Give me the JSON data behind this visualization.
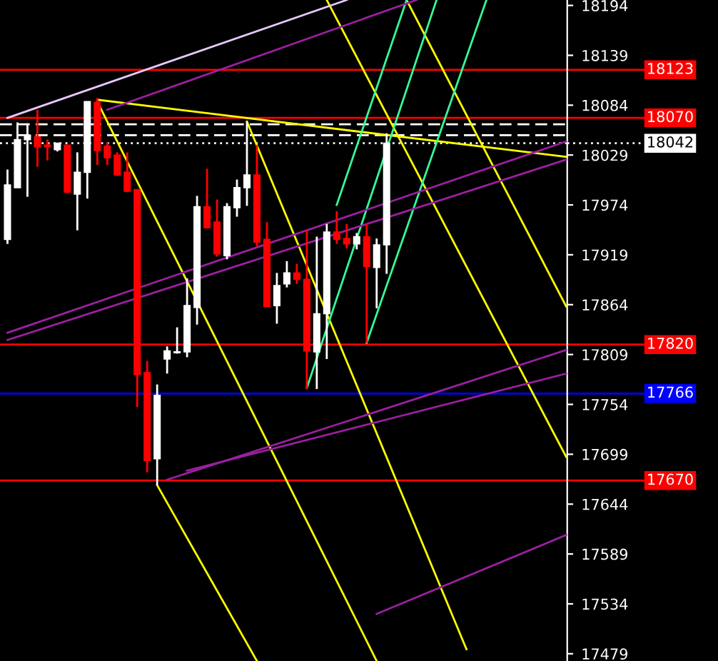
{
  "chart_data": {
    "type": "candlestick",
    "categories": [
      null,
      null,
      null,
      null,
      null,
      null,
      null,
      null,
      null,
      null,
      null,
      null,
      null,
      null,
      null,
      null,
      null,
      null,
      null,
      null,
      null,
      null,
      null,
      null,
      null,
      null,
      null,
      null,
      null,
      null,
      null,
      null,
      null,
      null,
      null,
      null,
      null,
      null,
      null,
      null,
      null,
      null,
      null,
      null,
      null,
      null,
      null,
      null,
      null,
      null,
      null,
      null,
      null,
      null,
      null,
      null,
      null
    ],
    "ohlc": [
      [
        17936,
        18013,
        17931,
        17996
      ],
      [
        17993,
        18065,
        17993,
        18046
      ],
      [
        18046,
        18064,
        17983,
        18051
      ],
      [
        18049,
        18079,
        18016,
        18038
      ],
      [
        18040,
        18046,
        18023,
        18038
      ],
      [
        18035,
        18042,
        18033,
        18042
      ],
      [
        18040,
        18040,
        17987,
        17988
      ],
      [
        17986,
        18032,
        17946,
        18010
      ],
      [
        18010,
        18088,
        17981,
        18088
      ],
      [
        18087,
        18092,
        18018,
        18034
      ],
      [
        18039,
        18043,
        18018,
        18026
      ],
      [
        18029,
        18032,
        18006,
        18007
      ],
      [
        18010,
        18032,
        17988,
        17989
      ],
      [
        17991,
        17991,
        17751,
        17787
      ],
      [
        17789,
        17802,
        17679,
        17692
      ],
      [
        17694,
        17776,
        17665,
        17764
      ],
      [
        17804,
        17818,
        17788,
        17813
      ],
      [
        17811,
        17839,
        17810,
        17812
      ],
      [
        17812,
        17893,
        17806,
        17863
      ],
      [
        17861,
        17984,
        17842,
        17972
      ],
      [
        17972,
        18014,
        17948,
        17949
      ],
      [
        17955,
        17980,
        17917,
        17920
      ],
      [
        17918,
        17976,
        17914,
        17972
      ],
      [
        17971,
        18002,
        17961,
        17993
      ],
      [
        17993,
        18066,
        17973,
        18007
      ],
      [
        18007,
        18040,
        17928,
        17933
      ],
      [
        17936,
        17955,
        17862,
        17862
      ],
      [
        17863,
        17899,
        17843,
        17885
      ],
      [
        17887,
        17912,
        17883,
        17899
      ],
      [
        17899,
        17909,
        17887,
        17892
      ],
      [
        17892,
        17947,
        17771,
        17813
      ],
      [
        17812,
        17939,
        17771,
        17854
      ],
      [
        17854,
        17953,
        17804,
        17944
      ],
      [
        17944,
        17967,
        17931,
        17936
      ],
      [
        17937,
        17953,
        17926,
        17931
      ],
      [
        17931,
        17943,
        17925,
        17939
      ],
      [
        17939,
        17953,
        17822,
        17906
      ],
      [
        17905,
        17937,
        17860,
        17930
      ],
      [
        17930,
        18053,
        17898,
        18042
      ],
      null,
      null,
      null,
      null,
      null,
      null,
      null,
      null,
      null,
      null,
      null,
      null,
      null,
      null,
      null,
      null,
      null,
      null
    ],
    "series": [
      {
        "type": "line",
        "color": "#ffff00",
        "values": [
          null,
          null,
          null,
          null,
          null,
          null,
          null,
          null,
          null,
          18088,
          null,
          null,
          null,
          null,
          null,
          null,
          null,
          null,
          null,
          null,
          null,
          null,
          null,
          null,
          null,
          null,
          null,
          null,
          null,
          null,
          null,
          null,
          null,
          null,
          null,
          null,
          null,
          17471,
          null,
          null,
          null,
          null,
          null,
          null,
          null,
          null,
          null,
          null,
          null,
          null,
          null,
          null,
          null,
          null,
          null,
          null,
          null
        ]
      },
      {
        "type": "line",
        "color": "#ffff00",
        "values": [
          null,
          null,
          null,
          null,
          null,
          null,
          null,
          null,
          null,
          null,
          null,
          null,
          null,
          null,
          null,
          null,
          null,
          null,
          null,
          null,
          null,
          null,
          null,
          null,
          18066,
          null,
          null,
          null,
          null,
          null,
          null,
          null,
          null,
          null,
          null,
          null,
          null,
          null,
          null,
          null,
          null,
          null,
          null,
          null,
          null,
          null,
          17484,
          null,
          null,
          null,
          null,
          null,
          null,
          null,
          null,
          null,
          null
        ]
      },
      {
        "type": "line",
        "color": "#ffff00",
        "values": [
          null,
          null,
          null,
          null,
          null,
          null,
          null,
          null,
          null,
          null,
          null,
          null,
          null,
          null,
          null,
          17665,
          null,
          null,
          null,
          null,
          null,
          null,
          null,
          null,
          null,
          17471,
          null,
          null,
          null,
          null,
          null,
          null,
          null,
          null,
          null,
          null,
          null,
          null,
          null,
          null,
          null,
          null,
          null,
          null,
          null,
          null,
          null,
          null,
          null,
          null,
          null,
          null,
          null,
          null,
          null,
          null,
          null
        ]
      },
      {
        "type": "line",
        "color": "#ffff00",
        "values": [
          null,
          null,
          null,
          null,
          null,
          null,
          null,
          null,
          null,
          18090,
          null,
          null,
          null,
          null,
          null,
          null,
          null,
          null,
          null,
          null,
          null,
          null,
          null,
          null,
          null,
          null,
          null,
          null,
          null,
          null,
          null,
          null,
          null,
          null,
          null,
          null,
          null,
          null,
          null,
          null,
          null,
          null,
          null,
          null,
          null,
          null,
          null,
          null,
          null,
          null,
          null,
          null,
          null,
          null,
          null,
          null,
          18027
        ]
      },
      {
        "type": "line",
        "color": "#ffff00",
        "values": [
          null,
          null,
          null,
          null,
          null,
          null,
          null,
          null,
          null,
          null,
          null,
          null,
          null,
          null,
          null,
          null,
          null,
          null,
          null,
          null,
          null,
          null,
          null,
          null,
          null,
          null,
          null,
          null,
          null,
          null,
          null,
          null,
          18200,
          null,
          null,
          null,
          null,
          null,
          null,
          null,
          null,
          null,
          null,
          null,
          null,
          null,
          null,
          null,
          null,
          null,
          null,
          null,
          null,
          null,
          null,
          null,
          17696
        ]
      },
      {
        "type": "line",
        "color": "#ffff00",
        "values": [
          null,
          null,
          null,
          null,
          null,
          null,
          null,
          null,
          null,
          null,
          null,
          null,
          null,
          null,
          null,
          null,
          null,
          null,
          null,
          null,
          null,
          null,
          null,
          null,
          null,
          null,
          null,
          null,
          null,
          null,
          null,
          null,
          null,
          null,
          null,
          null,
          null,
          null,
          null,
          null,
          18200,
          null,
          null,
          null,
          null,
          null,
          null,
          null,
          null,
          null,
          null,
          null,
          null,
          null,
          null,
          null,
          17862
        ]
      },
      {
        "type": "line",
        "color": "#33ff99",
        "values": [
          null,
          null,
          null,
          null,
          null,
          null,
          null,
          null,
          null,
          null,
          null,
          null,
          null,
          null,
          null,
          null,
          null,
          null,
          null,
          null,
          null,
          null,
          null,
          null,
          null,
          null,
          null,
          null,
          null,
          null,
          17772,
          null,
          null,
          null,
          null,
          null,
          null,
          null,
          null,
          null,
          null,
          null,
          null,
          18200,
          null,
          null,
          null,
          null,
          null,
          null,
          null,
          null,
          null,
          null,
          null,
          null,
          null
        ]
      },
      {
        "type": "line",
        "color": "#33ff99",
        "values": [
          null,
          null,
          null,
          null,
          null,
          null,
          null,
          null,
          null,
          null,
          null,
          null,
          null,
          null,
          null,
          null,
          null,
          null,
          null,
          null,
          null,
          null,
          null,
          null,
          null,
          null,
          null,
          null,
          null,
          null,
          null,
          null,
          null,
          17974,
          null,
          null,
          null,
          null,
          null,
          null,
          18200,
          null,
          null,
          null,
          null,
          null,
          null,
          null,
          null,
          null,
          null,
          null,
          null,
          null,
          null,
          null,
          null
        ]
      },
      {
        "type": "line",
        "color": "#33ff99",
        "values": [
          null,
          null,
          null,
          null,
          null,
          null,
          null,
          null,
          null,
          null,
          null,
          null,
          null,
          null,
          null,
          null,
          null,
          null,
          null,
          null,
          null,
          null,
          null,
          null,
          null,
          null,
          null,
          null,
          null,
          null,
          null,
          null,
          null,
          null,
          null,
          null,
          17822,
          null,
          null,
          null,
          null,
          null,
          null,
          null,
          null,
          null,
          null,
          null,
          18200,
          null,
          null,
          null,
          null,
          null,
          null,
          null,
          null
        ]
      },
      {
        "type": "line",
        "color": "#9b1fa0",
        "values": [
          17833,
          null,
          null,
          null,
          null,
          null,
          null,
          null,
          null,
          null,
          null,
          null,
          null,
          null,
          null,
          null,
          null,
          null,
          null,
          null,
          null,
          null,
          null,
          null,
          null,
          null,
          null,
          null,
          null,
          null,
          null,
          null,
          null,
          null,
          null,
          null,
          null,
          null,
          null,
          null,
          null,
          null,
          null,
          null,
          null,
          null,
          null,
          null,
          null,
          null,
          null,
          null,
          null,
          null,
          null,
          null,
          18044
        ]
      },
      {
        "type": "line",
        "color": "#9b1fa0",
        "values": [
          17825,
          null,
          null,
          null,
          null,
          null,
          null,
          null,
          null,
          null,
          null,
          null,
          null,
          null,
          null,
          null,
          null,
          null,
          null,
          null,
          null,
          null,
          null,
          null,
          null,
          null,
          null,
          null,
          null,
          null,
          null,
          null,
          null,
          null,
          null,
          null,
          null,
          null,
          null,
          null,
          null,
          null,
          null,
          null,
          null,
          null,
          null,
          null,
          null,
          null,
          null,
          null,
          null,
          null,
          null,
          null,
          18024
        ]
      },
      {
        "type": "line",
        "color": "#e8c8ff",
        "values": [
          18070,
          null,
          null,
          null,
          null,
          null,
          null,
          null,
          null,
          null,
          null,
          null,
          null,
          null,
          null,
          null,
          null,
          null,
          null,
          null,
          null,
          null,
          null,
          null,
          null,
          null,
          null,
          null,
          null,
          null,
          null,
          null,
          null,
          null,
          18200,
          null,
          null,
          null,
          null,
          null,
          null,
          null,
          null,
          null,
          null,
          null,
          null,
          null,
          null,
          null,
          null,
          null,
          null,
          null,
          null,
          null,
          null
        ]
      },
      {
        "type": "line",
        "color": "#9b1fa0",
        "values": [
          null,
          null,
          null,
          null,
          null,
          null,
          null,
          null,
          null,
          null,
          18079,
          null,
          null,
          null,
          null,
          null,
          null,
          null,
          null,
          null,
          null,
          null,
          null,
          null,
          null,
          null,
          null,
          null,
          null,
          null,
          null,
          null,
          null,
          null,
          null,
          null,
          null,
          null,
          null,
          null,
          null,
          18200,
          null,
          null,
          null,
          null,
          null,
          null,
          null,
          null,
          null,
          null,
          null,
          null,
          null,
          null,
          null
        ]
      },
      {
        "type": "line",
        "color": "#9b1fa0",
        "values": [
          null,
          null,
          null,
          null,
          null,
          null,
          null,
          null,
          null,
          null,
          null,
          null,
          null,
          null,
          null,
          null,
          17671,
          null,
          null,
          null,
          null,
          null,
          null,
          null,
          null,
          null,
          null,
          null,
          null,
          null,
          null,
          null,
          null,
          null,
          null,
          null,
          null,
          null,
          null,
          null,
          null,
          null,
          null,
          null,
          null,
          null,
          null,
          null,
          null,
          null,
          null,
          null,
          null,
          null,
          null,
          null,
          17814
        ]
      },
      {
        "type": "line",
        "color": "#9b1fa0",
        "values": [
          null,
          null,
          null,
          null,
          null,
          null,
          null,
          null,
          null,
          null,
          null,
          null,
          null,
          null,
          null,
          null,
          null,
          null,
          17681,
          null,
          null,
          null,
          null,
          null,
          null,
          null,
          null,
          null,
          null,
          null,
          null,
          null,
          null,
          null,
          null,
          null,
          null,
          null,
          null,
          null,
          null,
          null,
          null,
          null,
          null,
          null,
          null,
          null,
          null,
          null,
          null,
          null,
          null,
          null,
          null,
          null,
          17788
        ]
      },
      {
        "type": "line",
        "color": "#9b1fa0",
        "values": [
          null,
          null,
          null,
          null,
          null,
          null,
          null,
          null,
          null,
          null,
          null,
          null,
          null,
          null,
          null,
          null,
          null,
          null,
          null,
          null,
          null,
          null,
          null,
          null,
          null,
          null,
          null,
          null,
          null,
          null,
          null,
          null,
          null,
          null,
          null,
          null,
          null,
          17523,
          null,
          null,
          null,
          null,
          null,
          null,
          null,
          null,
          null,
          null,
          null,
          null,
          null,
          null,
          null,
          null,
          null,
          null,
          17610
        ]
      }
    ],
    "ylim": [
      17471,
      18200
    ],
    "yticks": [
      18194,
      18139,
      18084,
      18029,
      17974,
      17919,
      17864,
      17809,
      17754,
      17699,
      17644,
      17589,
      17534,
      17479
    ],
    "tick_labels": "y",
    "ref_lines": [
      {
        "axis": "y",
        "value": 18123,
        "label": "18123",
        "color": "#ff0000"
      },
      {
        "axis": "y",
        "value": 18070,
        "label": "18070",
        "color": "#ff0000"
      },
      {
        "axis": "y",
        "value": 18063,
        "color": "#ffffff",
        "line_style": "dashed"
      },
      {
        "axis": "y",
        "value": 18051,
        "color": "#ffffff",
        "line_style": "dashed"
      },
      {
        "axis": "y",
        "value": 18042,
        "label": "18042",
        "color": "#ffffff",
        "line_style": "dotted"
      },
      {
        "axis": "y",
        "value": 17820,
        "label": "17820",
        "color": "#ff0000"
      },
      {
        "axis": "y",
        "value": 17766,
        "label": "17766",
        "color": "#0000ff"
      },
      {
        "axis": "y",
        "value": 17670,
        "label": "17670",
        "color": "#ff0000"
      }
    ],
    "grid": false,
    "legend": false
  }
}
